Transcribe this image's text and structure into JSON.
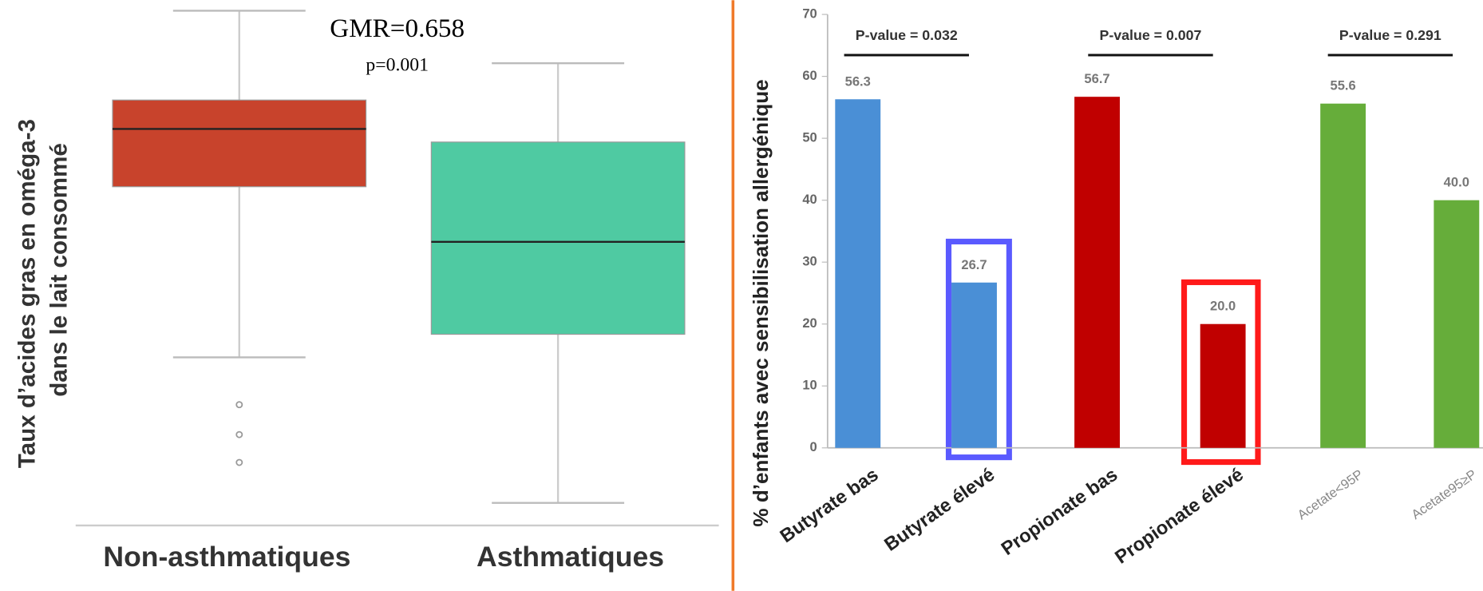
{
  "chart_data": [
    {
      "type": "box",
      "annotations": [
        "GMR=0.658",
        "p=0.001"
      ],
      "ylabel_lines": [
        "Taux d’acides gras en oméga-3",
        "dans le lait consommé"
      ],
      "categories": [
        "Non-asthmatiques",
        "Asthmatiques"
      ],
      "colors": [
        "#c8432c",
        "#4fcaa2"
      ],
      "ylim": [
        0,
        100
      ],
      "boxes": [
        {
          "whisker_high": 98,
          "q3": 81,
          "median": 75.5,
          "q1": 64.5,
          "whisker_low": 32,
          "outliers": [
            23,
            17.3,
            12
          ]
        },
        {
          "whisker_high": 88,
          "q3": 73,
          "median": 54,
          "q1": 36.4,
          "whisker_low": 4.3,
          "outliers": []
        }
      ]
    },
    {
      "type": "bar",
      "ylabel": "% d’enfants avec sensibilisation allergénique",
      "categories": [
        "Butyrate bas",
        "Butyrate élevé",
        "Propionate bas",
        "Propionate élevé",
        "Acetate<95P",
        "Acetate95≥P"
      ],
      "values": [
        56.3,
        26.7,
        56.7,
        20.0,
        55.6,
        40.0
      ],
      "value_labels": [
        "56.3",
        "26.7",
        "56.7",
        "20.0",
        "55.6",
        "40.0"
      ],
      "colors": [
        "#4a8fd6",
        "#4a8fd6",
        "#c00000",
        "#c00000",
        "#66ad3a",
        "#66ad3a"
      ],
      "annotations": [
        "P-value = 0.032",
        "P-value = 0.007",
        "P-value = 0.291"
      ],
      "ylim": [
        0,
        70
      ],
      "yticks": [
        0,
        10,
        20,
        30,
        40,
        50,
        60,
        70
      ]
    }
  ]
}
